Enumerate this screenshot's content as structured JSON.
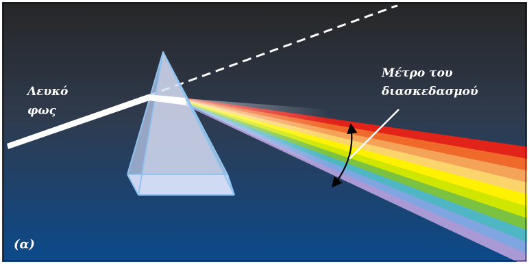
{
  "labels": {
    "white_light_line1": "Λευκό",
    "white_light_line2": "φως",
    "dispersion_line1": "Μέτρο του",
    "dispersion_line2": "διασκεδασμού",
    "panel": "(α)"
  },
  "colors": {
    "background_top": "#262626",
    "background_bottom": "#0b4a8c",
    "ray": "#ffffff",
    "spectrum": [
      "#e2231a",
      "#ef6a2a",
      "#f6a35a",
      "#fbd56c",
      "#fff200",
      "#cfe600",
      "#7cc242",
      "#4fb6c4",
      "#7fa6e0",
      "#a99ad6"
    ],
    "prism_face": "#c9d6f2",
    "prism_edge": "#8fc3f0"
  }
}
